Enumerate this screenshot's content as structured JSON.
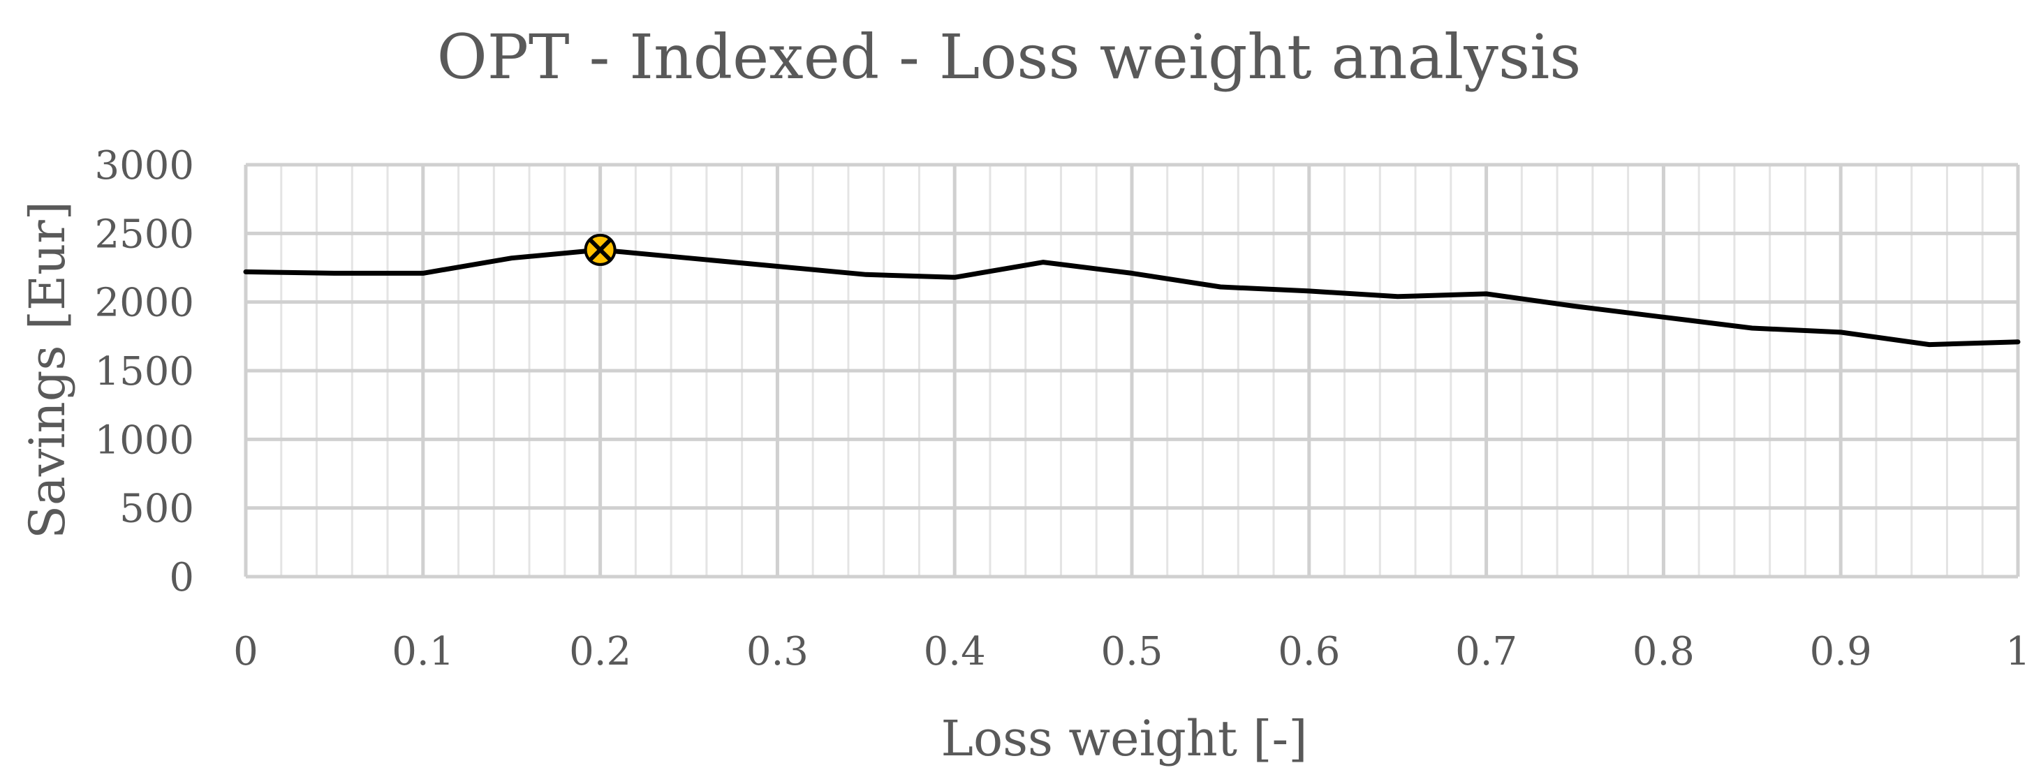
{
  "chart_data": {
    "type": "line",
    "title": "OPT - Indexed - Loss weight analysis",
    "xlabel": "Loss weight [-]",
    "ylabel": "Savings [Eur]",
    "xlim": [
      0,
      1
    ],
    "ylim": [
      0,
      3000
    ],
    "x_ticks": [
      "0",
      "0.1",
      "0.2",
      "0.3",
      "0.4",
      "0.5",
      "0.6",
      "0.7",
      "0.8",
      "0.9",
      "1"
    ],
    "y_ticks": [
      "0",
      "500",
      "1000",
      "1500",
      "2000",
      "2500",
      "3000"
    ],
    "x_tick_values": [
      0,
      0.1,
      0.2,
      0.3,
      0.4,
      0.5,
      0.6,
      0.7,
      0.8,
      0.9,
      1
    ],
    "y_tick_values": [
      0,
      500,
      1000,
      1500,
      2000,
      2500,
      3000
    ],
    "minor_x_step": 0.02,
    "grid": true,
    "legend": "none",
    "series": [
      {
        "color": "#000000",
        "x": [
          0,
          0.05,
          0.1,
          0.15,
          0.2,
          0.25,
          0.3,
          0.35,
          0.4,
          0.45,
          0.5,
          0.55,
          0.6,
          0.65,
          0.7,
          0.75,
          0.8,
          0.85,
          0.9,
          0.95,
          1
        ],
        "y": [
          2220,
          2210,
          2210,
          2320,
          2380,
          2320,
          2260,
          2200,
          2180,
          2290,
          2210,
          2110,
          2080,
          2040,
          2060,
          1970,
          1890,
          1810,
          1780,
          1690,
          1710
        ]
      }
    ],
    "highlight": {
      "x": 0.2,
      "y": 2380,
      "marker": "x-in-circle",
      "fill_color": "#FFC000",
      "stroke_color": "#000000"
    }
  }
}
